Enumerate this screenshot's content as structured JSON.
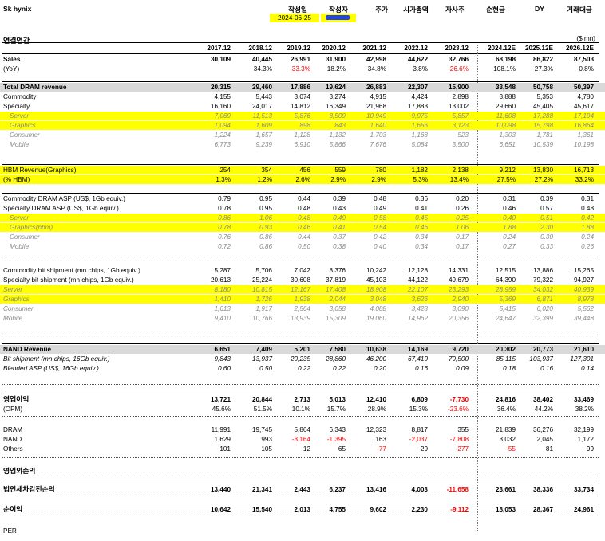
{
  "title": "Sk hynix",
  "header_labels": [
    "작성일",
    "작성자",
    "주가",
    "시가총액",
    "자사주",
    "순현금",
    "DY",
    "거래대금"
  ],
  "date_value": "2024-06-25",
  "section_title": "연결연간",
  "unit": "($ mn)",
  "years": [
    "2017.12",
    "2018.12",
    "2019.12",
    "2020.12",
    "2021.12",
    "2022.12",
    "2023.12",
    "2024.12E",
    "2025.12E",
    "2026.12E"
  ],
  "rows": [
    {
      "label": "Sales",
      "values": [
        "30,109",
        "40,445",
        "26,991",
        "31,900",
        "42,998",
        "44,622",
        "32,766",
        "68,198",
        "86,822",
        "87,503"
      ],
      "style": "bold"
    },
    {
      "label": "(YoY)",
      "values": [
        "",
        "34.3%",
        "-33.3%",
        "18.2%",
        "34.8%",
        "3.8%",
        "-26.6%",
        "108.1%",
        "27.3%",
        "0.8%"
      ],
      "style": ""
    },
    {
      "label": "Total DRAM revenue",
      "values": [
        "20,315",
        "29,460",
        "17,886",
        "19,624",
        "26,883",
        "22,307",
        "15,900",
        "33,548",
        "50,758",
        "50,397"
      ],
      "style": "gray bold"
    },
    {
      "label": "Commodity",
      "values": [
        "4,155",
        "5,443",
        "3,074",
        "3,274",
        "4,915",
        "4,424",
        "2,898",
        "3,888",
        "5,353",
        "4,780"
      ],
      "style": ""
    },
    {
      "label": "Specialty",
      "values": [
        "16,160",
        "24,017",
        "14,812",
        "16,349",
        "21,968",
        "17,883",
        "13,002",
        "29,660",
        "45,405",
        "45,617"
      ],
      "style": ""
    },
    {
      "label": "Server",
      "values": [
        "7,069",
        "11,513",
        "5,876",
        "8,509",
        "10,949",
        "9,975",
        "5,857",
        "11,608",
        "17,288",
        "17,194"
      ],
      "style": "hl faded indent"
    },
    {
      "label": "Graphics",
      "values": [
        "1,094",
        "1,609",
        "898",
        "843",
        "1,640",
        "1,656",
        "3,123",
        "10,098",
        "15,798",
        "16,864"
      ],
      "style": "hl faded indent"
    },
    {
      "label": "Consumer",
      "values": [
        "1,224",
        "1,657",
        "1,128",
        "1,132",
        "1,703",
        "1,168",
        "523",
        "1,303",
        "1,781",
        "1,361"
      ],
      "style": "faded indent"
    },
    {
      "label": "Mobile",
      "values": [
        "6,773",
        "9,239",
        "6,910",
        "5,866",
        "7,676",
        "5,084",
        "3,500",
        "6,651",
        "10,539",
        "10,198"
      ],
      "style": "faded indent"
    },
    {
      "label": "HBM Revenue(Graphics)",
      "values": [
        "254",
        "354",
        "456",
        "559",
        "780",
        "1,182",
        "2,138",
        "9,212",
        "13,830",
        "16,713"
      ],
      "style": "hl"
    },
    {
      "label": "(% HBM)",
      "values": [
        "1.3%",
        "1.2%",
        "2.6%",
        "2.9%",
        "2.9%",
        "5.3%",
        "13.4%",
        "27.5%",
        "27.2%",
        "33.2%"
      ],
      "style": "hl"
    },
    {
      "label": "Commodity DRAM ASP (US$, 1Gb equiv.)",
      "values": [
        "0.79",
        "0.95",
        "0.44",
        "0.39",
        "0.48",
        "0.36",
        "0.20",
        "0.31",
        "0.39",
        "0.31"
      ],
      "style": ""
    },
    {
      "label": "Specialty DRAM ASP (US$, 1Gb equiv.)",
      "values": [
        "0.78",
        "0.95",
        "0.48",
        "0.43",
        "0.49",
        "0.41",
        "0.26",
        "0.46",
        "0.57",
        "0.48"
      ],
      "style": ""
    },
    {
      "label": "Server",
      "values": [
        "0.86",
        "1.06",
        "0.48",
        "0.49",
        "0.58",
        "0.45",
        "0.25",
        "0.40",
        "0.51",
        "0.42"
      ],
      "style": "hl faded indent"
    },
    {
      "label": "Graphics(hbm)",
      "values": [
        "0.78",
        "0.93",
        "0.46",
        "0.41",
        "0.54",
        "0.46",
        "1.06",
        "1.88",
        "2.30",
        "1.88"
      ],
      "style": "hl faded indent"
    },
    {
      "label": "Consumer",
      "values": [
        "0.76",
        "0.86",
        "0.44",
        "0.37",
        "0.42",
        "0.34",
        "0.17",
        "0.24",
        "0.30",
        "0.24"
      ],
      "style": "faded indent"
    },
    {
      "label": "Mobile",
      "values": [
        "0.72",
        "0.86",
        "0.50",
        "0.38",
        "0.40",
        "0.34",
        "0.17",
        "0.27",
        "0.33",
        "0.26"
      ],
      "style": "faded indent"
    },
    {
      "label": "Commodity bit shipment (mn chips, 1Gb equiv.)",
      "values": [
        "5,287",
        "5,706",
        "7,042",
        "8,376",
        "10,242",
        "12,128",
        "14,331",
        "12,515",
        "13,886",
        "15,265"
      ],
      "style": ""
    },
    {
      "label": "Specialty bit shipment (mn chips, 1Gb equiv.)",
      "values": [
        "20,613",
        "25,224",
        "30,608",
        "37,819",
        "45,103",
        "44,122",
        "49,679",
        "64,390",
        "79,322",
        "94,927"
      ],
      "style": ""
    },
    {
      "label": "Server",
      "values": [
        "8,180",
        "10,815",
        "12,167",
        "17,408",
        "18,908",
        "22,107",
        "23,293",
        "28,959",
        "34,032",
        "40,939"
      ],
      "style": "hl faded"
    },
    {
      "label": "Graphics",
      "values": [
        "1,410",
        "1,726",
        "1,938",
        "2,044",
        "3,048",
        "3,626",
        "2,940",
        "5,369",
        "6,871",
        "8,978"
      ],
      "style": "hl faded"
    },
    {
      "label": "Consumer",
      "values": [
        "1,613",
        "1,917",
        "2,564",
        "3,058",
        "4,088",
        "3,428",
        "3,090",
        "5,415",
        "6,020",
        "5,562"
      ],
      "style": "faded"
    },
    {
      "label": "Mobile",
      "values": [
        "9,410",
        "10,766",
        "13,939",
        "15,309",
        "19,060",
        "14,962",
        "20,356",
        "24,647",
        "32,399",
        "39,448"
      ],
      "style": "faded"
    },
    {
      "label": "NAND Revenue",
      "values": [
        "6,651",
        "7,409",
        "5,201",
        "7,580",
        "10,638",
        "14,169",
        "9,720",
        "20,302",
        "20,773",
        "21,610"
      ],
      "style": "gray bold"
    },
    {
      "label": "Bit shipment (mn chips, 16Gb equiv.)",
      "values": [
        "9,843",
        "13,937",
        "20,235",
        "28,860",
        "46,200",
        "67,410",
        "79,500",
        "85,115",
        "103,937",
        "127,301"
      ],
      "style": "ital"
    },
    {
      "label": "Blended ASP (US$, 16Gb equiv.)",
      "values": [
        "0.60",
        "0.50",
        "0.22",
        "0.22",
        "0.20",
        "0.16",
        "0.09",
        "0.18",
        "0.16",
        "0.14"
      ],
      "style": "ital"
    },
    {
      "label": "영업이익",
      "values": [
        "13,721",
        "20,844",
        "2,713",
        "5,013",
        "12,410",
        "6,809",
        "-7,730",
        "24,816",
        "38,402",
        "33,469"
      ],
      "style": "bold kor"
    },
    {
      "label": "(OPM)",
      "values": [
        "45.6%",
        "51.5%",
        "10.1%",
        "15.7%",
        "28.9%",
        "15.3%",
        "-23.6%",
        "36.4%",
        "44.2%",
        "38.2%"
      ],
      "style": ""
    },
    {
      "label": "DRAM",
      "values": [
        "11,991",
        "19,745",
        "5,864",
        "6,343",
        "12,323",
        "8,817",
        "355",
        "21,839",
        "36,276",
        "32,199"
      ],
      "style": ""
    },
    {
      "label": "NAND",
      "values": [
        "1,629",
        "993",
        "-3,164",
        "-1,395",
        "163",
        "-2,037",
        "-7,808",
        "3,032",
        "2,045",
        "1,172"
      ],
      "style": ""
    },
    {
      "label": "Others",
      "values": [
        "101",
        "105",
        "12",
        "65",
        "-77",
        "29",
        "-277",
        "-55",
        "81",
        "99"
      ],
      "style": ""
    },
    {
      "label": "영업외손익",
      "values": [
        "",
        "",
        "",
        "",
        "",
        "",
        "",
        "",
        "",
        ""
      ],
      "style": "bold kor"
    },
    {
      "label": "법인세차감전순익",
      "values": [
        "13,440",
        "21,341",
        "2,443",
        "6,237",
        "13,416",
        "4,003",
        "-11,658",
        "23,661",
        "38,336",
        "33,734"
      ],
      "style": "bold kor"
    },
    {
      "label": "순이익",
      "values": [
        "10,642",
        "15,540",
        "2,013",
        "4,755",
        "9,602",
        "2,230",
        "-9,112",
        "18,053",
        "28,367",
        "24,961"
      ],
      "style": "bold kor"
    },
    {
      "label": "PER",
      "values": [
        "",
        "",
        "",
        "",
        "",
        "",
        "",
        "",
        "",
        ""
      ],
      "style": ""
    }
  ]
}
